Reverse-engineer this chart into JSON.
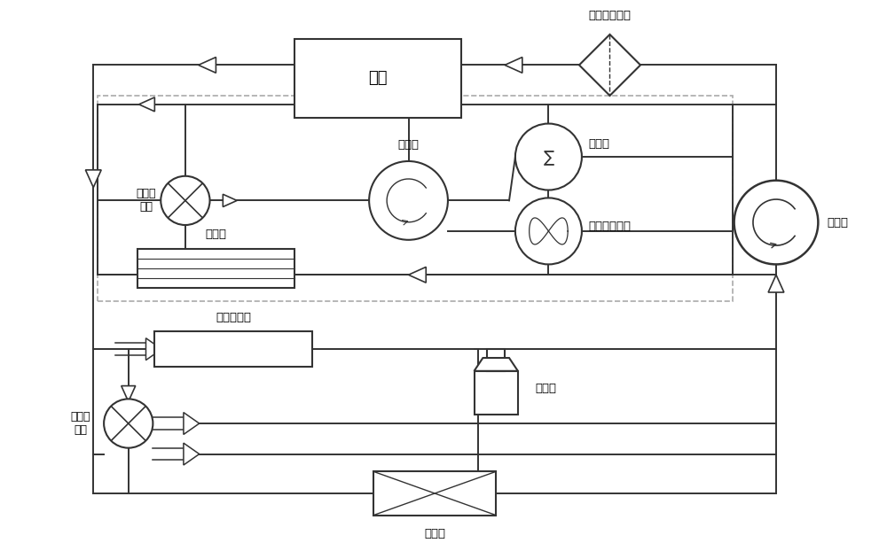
{
  "bg_color": "#ffffff",
  "line_color": "#333333",
  "labels": {
    "diandui": "电堆",
    "xiaoshuibeng": "小水泵",
    "jiareqi": "加热器",
    "nuanfeng": "暖风热交换器",
    "zhonglengqi": "中冷器",
    "lizi": "离子交换器",
    "liuliangkong1": "流量控\n制阀",
    "liuliangkong2": "流量控\n制阀",
    "lengque": "冷却液过滤器",
    "dashuibeng": "大水泵",
    "pengzhangxiang": "膨胀箱",
    "sanreqi": "散热器"
  }
}
